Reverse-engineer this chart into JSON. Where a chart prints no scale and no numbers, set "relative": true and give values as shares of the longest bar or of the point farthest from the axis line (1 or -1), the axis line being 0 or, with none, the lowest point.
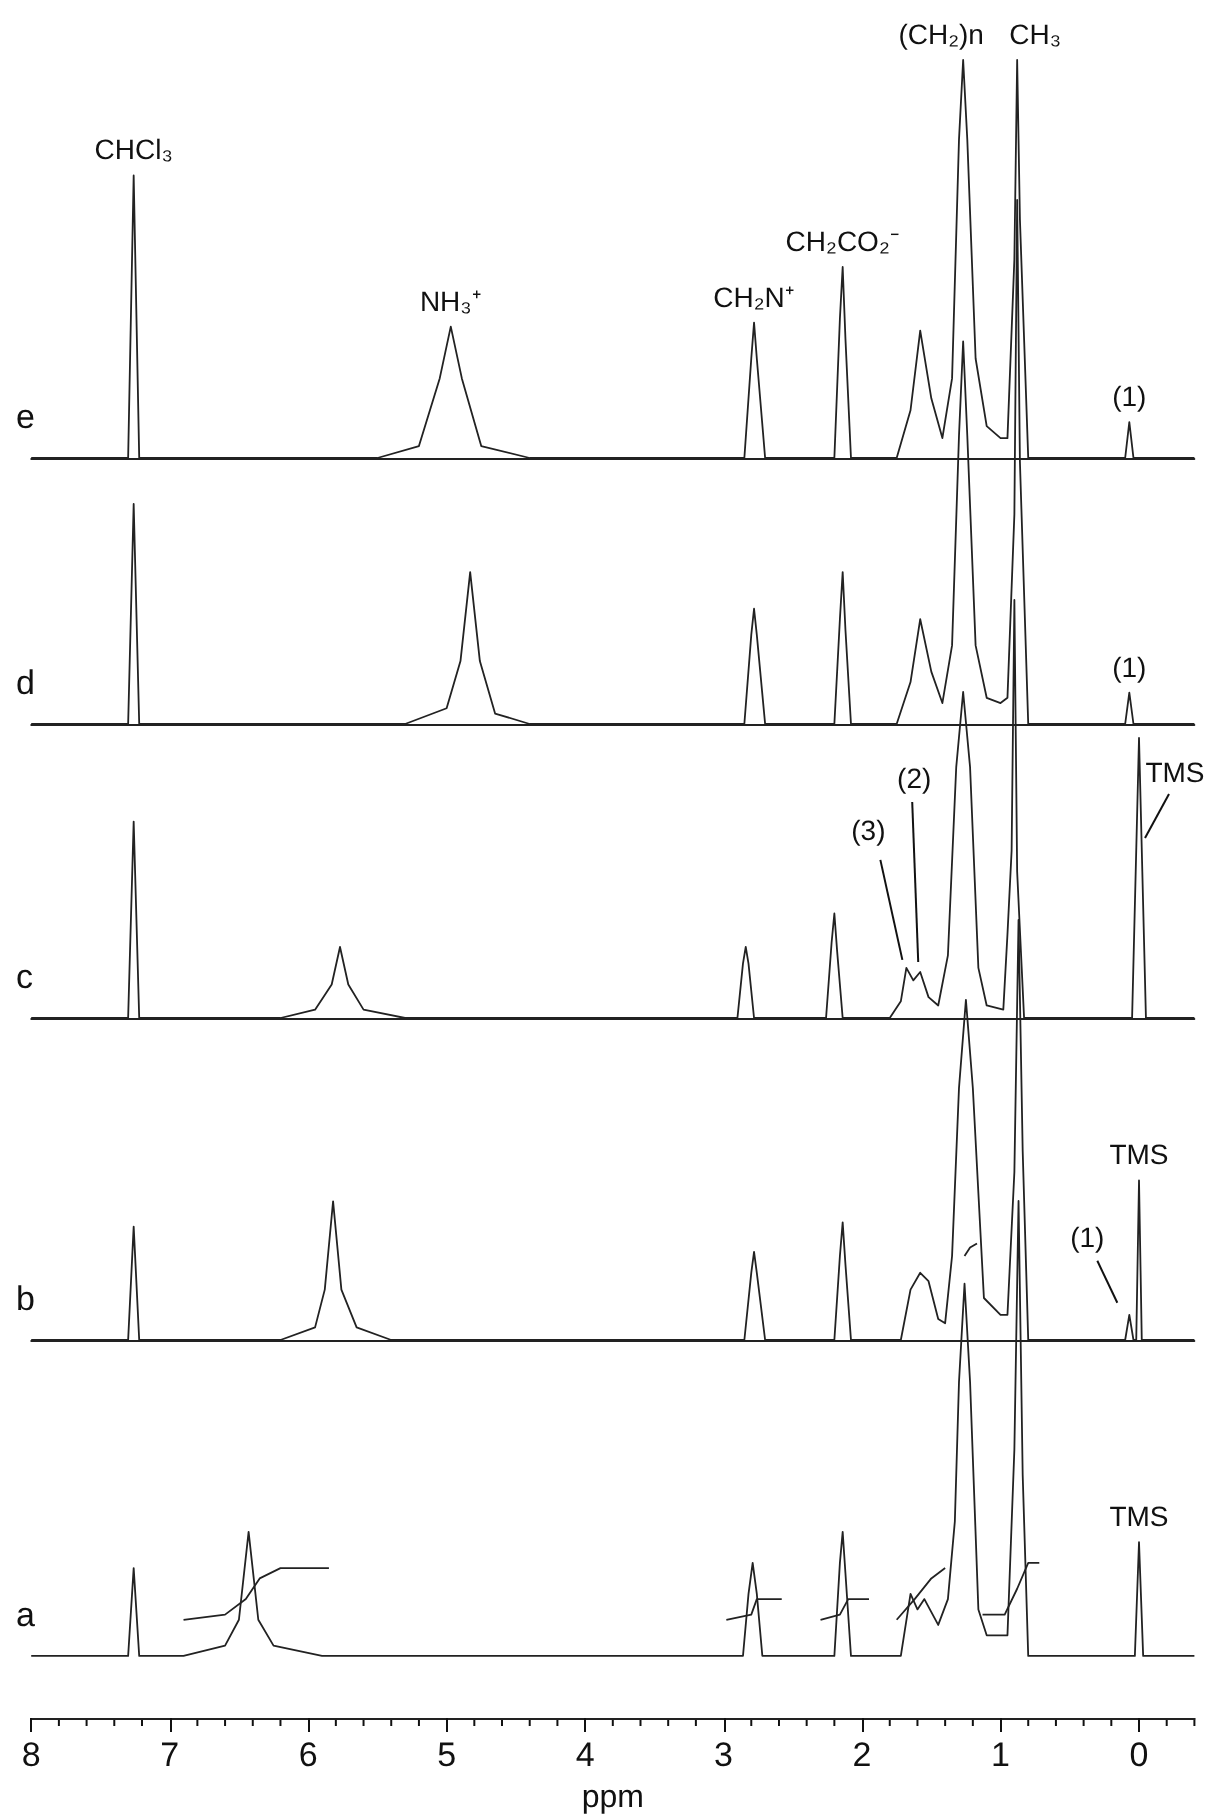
{
  "chart_data": [
    {
      "type": "line",
      "title": "e",
      "xlim": [
        8,
        -0.4
      ],
      "relative": true,
      "tick_labels": false,
      "series": [
        {
          "color": "#222222",
          "x": [
            8,
            7.3,
            7.26,
            7.22,
            5.5,
            5.2,
            5.05,
            4.97,
            4.89,
            4.75,
            4.4,
            2.85,
            2.8,
            2.78,
            2.76,
            2.7,
            2.2,
            2.16,
            2.14,
            2.12,
            2.08,
            1.75,
            1.65,
            1.58,
            1.5,
            1.42,
            1.35,
            1.3,
            1.27,
            1.24,
            1.18,
            1.1,
            1.0,
            0.95,
            0.9,
            0.88,
            0.86,
            0.8,
            0.1,
            0.07,
            0.04,
            -0.4
          ],
          "values": [
            0,
            0,
            0.71,
            0,
            0,
            0.03,
            0.2,
            0.33,
            0.2,
            0.03,
            0,
            0,
            0.25,
            0.34,
            0.25,
            0,
            0,
            0.35,
            0.48,
            0.3,
            0,
            0,
            0.12,
            0.32,
            0.15,
            0.05,
            0.2,
            0.8,
            1,
            0.8,
            0.25,
            0.08,
            0.05,
            0.05,
            0.5,
            1,
            0.6,
            0,
            0,
            0.09,
            0,
            0
          ]
        }
      ],
      "annotations": [
        {
          "text": "CHCl₃",
          "x": 7.26,
          "y": 0.71
        },
        {
          "text": "NH₃⁺",
          "x": 4.97,
          "y": 0.33
        },
        {
          "text": "CH₂N⁺",
          "x": 2.78,
          "y": 0.34
        },
        {
          "text": "CH₂CO₂⁻",
          "x": 2.14,
          "y": 0.48
        },
        {
          "text": "(CH₂)n",
          "x": 1.27,
          "y": 1
        },
        {
          "text": "CH₃",
          "x": 0.88,
          "y": 1
        },
        {
          "text": "(1)",
          "x": 0.07,
          "y": 0.09
        }
      ]
    },
    {
      "type": "line",
      "title": "d",
      "xlim": [
        8,
        -0.4
      ],
      "relative": true,
      "tick_labels": false,
      "series": [
        {
          "color": "#222222",
          "x": [
            8,
            7.3,
            7.26,
            7.22,
            5.3,
            5.0,
            4.9,
            4.83,
            4.76,
            4.65,
            4.4,
            2.85,
            2.8,
            2.78,
            2.76,
            2.7,
            2.2,
            2.16,
            2.14,
            2.12,
            2.08,
            1.75,
            1.65,
            1.58,
            1.5,
            1.42,
            1.35,
            1.3,
            1.27,
            1.24,
            1.18,
            1.1,
            1.0,
            0.95,
            0.9,
            0.88,
            0.86,
            0.8,
            0.1,
            0.07,
            0.04,
            -0.4
          ],
          "values": [
            0,
            0,
            0.42,
            0,
            0,
            0.03,
            0.12,
            0.29,
            0.12,
            0.02,
            0,
            0,
            0.17,
            0.22,
            0.17,
            0,
            0,
            0.2,
            0.29,
            0.18,
            0,
            0,
            0.08,
            0.2,
            0.1,
            0.04,
            0.15,
            0.55,
            0.73,
            0.55,
            0.15,
            0.05,
            0.04,
            0.05,
            0.4,
            1,
            0.5,
            0,
            0,
            0.06,
            0,
            0
          ]
        }
      ],
      "annotations": [
        {
          "text": "(1)",
          "x": 0.07,
          "y": 0.06
        }
      ]
    },
    {
      "type": "line",
      "title": "c",
      "xlim": [
        8,
        -0.4
      ],
      "relative": true,
      "tick_labels": false,
      "series": [
        {
          "color": "#222222",
          "x": [
            8,
            7.3,
            7.26,
            7.22,
            6.2,
            5.95,
            5.83,
            5.77,
            5.71,
            5.6,
            5.3,
            2.9,
            2.86,
            2.84,
            2.82,
            2.78,
            2.26,
            2.22,
            2.2,
            2.18,
            2.14,
            1.8,
            1.72,
            1.68,
            1.63,
            1.58,
            1.52,
            1.45,
            1.38,
            1.32,
            1.27,
            1.22,
            1.16,
            1.1,
            0.98,
            0.95,
            0.92,
            0.9,
            0.88,
            0.83,
            0.05,
            0.0,
            -0.05,
            -0.4
          ],
          "values": [
            0,
            0,
            0.47,
            0,
            0,
            0.02,
            0.08,
            0.17,
            0.08,
            0.02,
            0,
            0,
            0.13,
            0.17,
            0.13,
            0,
            0,
            0.18,
            0.25,
            0.16,
            0,
            0,
            0.04,
            0.12,
            0.09,
            0.11,
            0.05,
            0.03,
            0.15,
            0.6,
            0.78,
            0.6,
            0.12,
            0.03,
            0.02,
            0.2,
            0.4,
            1,
            0.35,
            0,
            0,
            0.67,
            0,
            0
          ]
        }
      ],
      "annotations": [
        {
          "text": "(3)",
          "x": 1.68,
          "y": 0.12
        },
        {
          "text": "(2)",
          "x": 1.58,
          "y": 0.11
        },
        {
          "text": "TMS",
          "x": 0,
          "y": 0.67
        }
      ]
    },
    {
      "type": "line",
      "title": "b",
      "xlim": [
        8,
        -0.4
      ],
      "relative": true,
      "tick_labels": false,
      "series": [
        {
          "color": "#222222",
          "x": [
            8,
            7.3,
            7.26,
            7.22,
            6.2,
            5.95,
            5.88,
            5.82,
            5.76,
            5.65,
            5.4,
            2.85,
            2.8,
            2.78,
            2.76,
            2.7,
            2.2,
            2.16,
            2.14,
            2.12,
            2.08,
            1.72,
            1.65,
            1.58,
            1.52,
            1.45,
            1.4,
            1.35,
            1.3,
            1.25,
            1.2,
            1.12,
            1.0,
            0.95,
            0.9,
            0.87,
            0.84,
            0.8,
            0.1,
            0.07,
            0.04,
            0.02,
            0.0,
            -0.02,
            -0.4
          ],
          "values": [
            0,
            0,
            0.27,
            0,
            0,
            0.03,
            0.12,
            0.33,
            0.12,
            0.03,
            0,
            0,
            0.16,
            0.21,
            0.16,
            0,
            0,
            0.2,
            0.28,
            0.18,
            0,
            0,
            0.12,
            0.16,
            0.14,
            0.05,
            0.04,
            0.2,
            0.6,
            0.81,
            0.6,
            0.1,
            0.06,
            0.06,
            0.4,
            1,
            0.45,
            0,
            0,
            0.06,
            0,
            0,
            0.38,
            0,
            0
          ]
        },
        {
          "color": "#222222",
          "x": [
            1.26,
            1.22,
            1.17
          ],
          "values": [
            0.2,
            0.22,
            0.23
          ]
        }
      ],
      "annotations": [
        {
          "text": "(1)",
          "x": 0.07,
          "y": 0.06
        },
        {
          "text": "TMS",
          "x": 0,
          "y": 0.38
        }
      ]
    },
    {
      "type": "line",
      "title": "a",
      "xlabel": "ppm",
      "xlim": [
        8,
        -0.4
      ],
      "relative": true,
      "tick_labels": "x",
      "xticks": [
        8,
        {
          "value": 7.8,
          "label": null
        },
        {
          "value": 7.6,
          "label": null
        },
        {
          "value": 7.4,
          "label": null
        },
        {
          "value": 7.2,
          "label": null
        },
        7,
        {
          "value": 6.8,
          "label": null
        },
        {
          "value": 6.6,
          "label": null
        },
        {
          "value": 6.4,
          "label": null
        },
        {
          "value": 6.2,
          "label": null
        },
        6,
        {
          "value": 5.8,
          "label": null
        },
        {
          "value": 5.6,
          "label": null
        },
        {
          "value": 5.4,
          "label": null
        },
        {
          "value": 5.2,
          "label": null
        },
        5,
        {
          "value": 4.8,
          "label": null
        },
        {
          "value": 4.6,
          "label": null
        },
        {
          "value": 4.4,
          "label": null
        },
        {
          "value": 4.2,
          "label": null
        },
        4,
        {
          "value": 3.8,
          "label": null
        },
        {
          "value": 3.6,
          "label": null
        },
        {
          "value": 3.4,
          "label": null
        },
        {
          "value": 3.2,
          "label": null
        },
        3,
        {
          "value": 2.8,
          "label": null
        },
        {
          "value": 2.6,
          "label": null
        },
        {
          "value": 2.4,
          "label": null
        },
        {
          "value": 2.2,
          "label": null
        },
        2,
        {
          "value": 1.8,
          "label": null
        },
        {
          "value": 1.6,
          "label": null
        },
        {
          "value": 1.4,
          "label": null
        },
        {
          "value": 1.2,
          "label": null
        },
        1,
        {
          "value": 0.8,
          "label": null
        },
        {
          "value": 0.6,
          "label": null
        },
        {
          "value": 0.4,
          "label": null
        },
        {
          "value": 0.2,
          "label": null
        },
        0,
        {
          "value": -0.2,
          "label": null
        },
        {
          "value": -0.4,
          "label": null
        }
      ],
      "series": [
        {
          "color": "#222222",
          "x": [
            8,
            7.3,
            7.26,
            7.22,
            6.9,
            6.6,
            6.5,
            6.43,
            6.36,
            6.25,
            5.9,
            2.86,
            2.82,
            2.79,
            2.76,
            2.72,
            2.2,
            2.16,
            2.14,
            2.12,
            2.08,
            1.72,
            1.65,
            1.6,
            1.55,
            1.45,
            1.38,
            1.33,
            1.3,
            1.26,
            1.22,
            1.16,
            1.1,
            0.95,
            0.9,
            0.87,
            0.84,
            0.8,
            0.03,
            0.0,
            -0.03,
            -0.4
          ],
          "values": [
            0.12,
            0.12,
            0.29,
            0.12,
            0.12,
            0.14,
            0.19,
            0.36,
            0.19,
            0.14,
            0.12,
            0.12,
            0.24,
            0.3,
            0.24,
            0.12,
            0.12,
            0.3,
            0.36,
            0.28,
            0.12,
            0.12,
            0.24,
            0.21,
            0.23,
            0.18,
            0.23,
            0.38,
            0.65,
            0.84,
            0.65,
            0.21,
            0.16,
            0.16,
            0.52,
            1,
            0.47,
            0.12,
            0.12,
            0.34,
            0.12,
            0.12
          ]
        },
        {
          "color": "#222222",
          "x": [
            6.9,
            6.6,
            6.45,
            6.35,
            6.2,
            5.85,
            5.5,
            2.98,
            2.8,
            2.76,
            2.58,
            2.45,
            2.3,
            2.16,
            2.1,
            1.95,
            1.85,
            1.75,
            1.62,
            1.5,
            1.4,
            1.3,
            1.13,
            0.97,
            0.88,
            0.8,
            0.72
          ],
          "values": [
            0.19,
            0.2,
            0.23,
            0.27,
            0.29,
            0.29,
            null,
            0.19,
            0.2,
            0.23,
            0.23,
            null,
            0.19,
            0.2,
            0.23,
            0.23,
            null,
            0.19,
            0.23,
            0.27,
            0.29,
            null,
            0.2,
            0.2,
            0.25,
            0.3,
            0.3
          ]
        }
      ],
      "annotations": [
        {
          "text": "TMS",
          "x": 0,
          "y": 0.34
        }
      ]
    }
  ]
}
